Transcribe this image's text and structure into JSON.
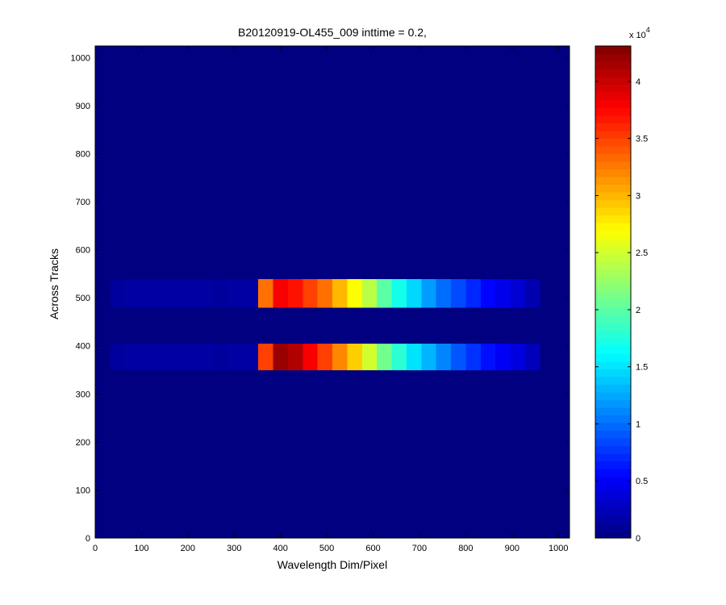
{
  "chart_data": {
    "type": "heatmap",
    "title": "B20120919-OL455_009 inttime = 0.2,",
    "xlabel": "Wavelength Dim/Pixel",
    "ylabel": "Across Tracks",
    "colormap": "jet",
    "xlim": [
      0,
      1024
    ],
    "ylim": [
      0,
      1024
    ],
    "xticks": [
      0,
      100,
      200,
      300,
      400,
      500,
      600,
      700,
      800,
      900,
      1000
    ],
    "yticks": [
      0,
      100,
      200,
      300,
      400,
      500,
      600,
      700,
      800,
      900,
      1000
    ],
    "xbins": [
      0,
      32,
      64,
      96,
      128,
      160,
      192,
      224,
      256,
      288,
      320,
      352,
      384,
      416,
      448,
      480,
      512,
      544,
      576,
      608,
      640,
      672,
      704,
      736,
      768,
      800,
      832,
      864,
      896,
      928,
      960,
      992,
      1024
    ],
    "ybins": [
      0,
      350,
      405,
      480,
      540,
      1024
    ],
    "values": [
      [
        0,
        0,
        0,
        0,
        0,
        0,
        0,
        0,
        0,
        0,
        0,
        0,
        0,
        0,
        0,
        0,
        0,
        0,
        0,
        0,
        0,
        0,
        0,
        0,
        0,
        0,
        0,
        0,
        0,
        0,
        0,
        0
      ],
      [
        0,
        1200,
        1500,
        1500,
        1500,
        1500,
        1500,
        1500,
        1200,
        1500,
        1500,
        35000,
        42000,
        41000,
        38000,
        35000,
        32000,
        29000,
        25000,
        21000,
        18000,
        15000,
        13000,
        11000,
        9000,
        7500,
        6000,
        5000,
        4000,
        2500,
        0,
        0
      ],
      [
        0,
        0,
        0,
        0,
        0,
        0,
        0,
        0,
        0,
        0,
        0,
        0,
        0,
        0,
        0,
        0,
        0,
        0,
        0,
        0,
        0,
        0,
        0,
        0,
        0,
        0,
        0,
        0,
        0,
        0,
        0,
        0
      ],
      [
        0,
        1200,
        1500,
        1500,
        1500,
        1500,
        1500,
        1500,
        1200,
        1500,
        1500,
        33000,
        38000,
        37000,
        35000,
        33000,
        30000,
        27000,
        24000,
        20000,
        17000,
        14500,
        12000,
        10000,
        8500,
        7000,
        5500,
        4500,
        3500,
        2000,
        0,
        0
      ],
      [
        0,
        0,
        0,
        0,
        0,
        0,
        0,
        0,
        0,
        0,
        0,
        0,
        0,
        0,
        0,
        0,
        0,
        0,
        0,
        0,
        0,
        0,
        0,
        0,
        0,
        0,
        0,
        0,
        0,
        0,
        0,
        0
      ]
    ],
    "clim": [
      0,
      43100
    ],
    "cticks": [
      0,
      {
        "value": 5000,
        "label": "0.5"
      },
      {
        "value": 10000,
        "label": "1"
      },
      {
        "value": 15000,
        "label": "1.5"
      },
      {
        "value": 20000,
        "label": "2"
      },
      {
        "value": 25000,
        "label": "2.5"
      },
      {
        "value": 30000,
        "label": "3"
      },
      {
        "value": 35000,
        "label": "3.5"
      },
      {
        "value": 40000,
        "label": "4"
      }
    ],
    "cscale_label": "x 10",
    "cscale_exponent": 4
  }
}
